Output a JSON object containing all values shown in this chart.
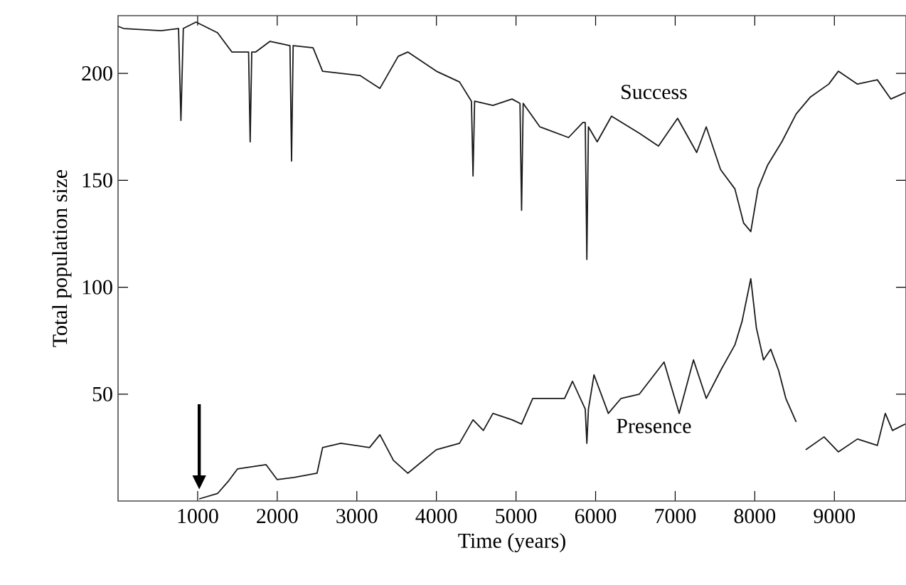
{
  "chart_data": {
    "type": "line",
    "xlabel": "Time (years)",
    "ylabel": "Total population size",
    "xlim": [
      0,
      9900
    ],
    "ylim": [
      0,
      227
    ],
    "xticks": [
      1000,
      2000,
      3000,
      4000,
      5000,
      6000,
      7000,
      8000,
      9000
    ],
    "yticks": [
      50,
      100,
      150,
      200
    ],
    "series": [
      {
        "name": "Success",
        "color": "#1a1a1a",
        "x": [
          0,
          70,
          540,
          760,
          790,
          820,
          980,
          1250,
          1430,
          1640,
          1660,
          1680,
          1730,
          1910,
          2160,
          2180,
          2200,
          2450,
          2570,
          3040,
          3290,
          3520,
          3640,
          4000,
          4290,
          4440,
          4460,
          4480,
          4710,
          4950,
          5050,
          5070,
          5090,
          5300,
          5660,
          5840,
          5870,
          5890,
          5910,
          6020,
          6200,
          6550,
          6790,
          7030,
          7270,
          7390,
          7570,
          7750,
          7860,
          7950,
          8040,
          8160,
          8340,
          8520,
          8700,
          8930,
          9050,
          9290,
          9540,
          9710,
          9890
        ],
        "values": [
          222,
          221,
          220,
          221,
          178,
          221,
          224,
          219,
          210,
          210,
          168,
          210,
          210,
          215,
          213,
          159,
          213,
          212,
          201,
          199,
          193,
          208,
          210,
          201,
          196,
          187,
          152,
          187,
          185,
          188,
          186,
          136,
          186,
          175,
          170,
          177,
          177,
          113,
          175,
          168,
          180,
          172,
          166,
          179,
          163,
          175,
          155,
          146,
          130,
          126,
          146,
          157,
          168,
          181,
          189,
          195,
          201,
          195,
          197,
          188,
          191
        ]
      },
      {
        "name": "Presence",
        "color": "#1a1a1a",
        "x": [
          1020,
          1250,
          1380,
          1500,
          1860,
          2000,
          2210,
          2500,
          2570,
          2800,
          3160,
          3290,
          3460,
          3640,
          4000,
          4290,
          4460,
          4590,
          4710,
          4950,
          5070,
          5210,
          5610,
          5710,
          5870,
          5890,
          5910,
          5980,
          6160,
          6320,
          6550,
          6860,
          7050,
          7230,
          7390,
          7570,
          7750,
          7840,
          7950,
          8020,
          8110,
          8200,
          8300,
          8390,
          8520,
          8580,
          8640,
          8870,
          9050,
          9290,
          9540,
          9640,
          9730,
          9890
        ],
        "values": [
          1,
          3.5,
          9,
          15,
          17,
          10,
          11,
          13,
          25,
          27,
          25,
          31,
          19,
          13,
          24,
          27,
          38,
          33,
          41,
          38,
          36,
          48,
          48,
          56,
          43,
          27,
          43,
          59,
          41,
          48,
          50,
          65,
          41,
          66,
          48,
          61,
          73,
          84,
          104,
          81,
          66,
          71,
          61,
          48,
          37,
          null,
          24,
          30,
          23,
          29,
          26,
          41,
          33,
          36
        ]
      }
    ]
  }
}
